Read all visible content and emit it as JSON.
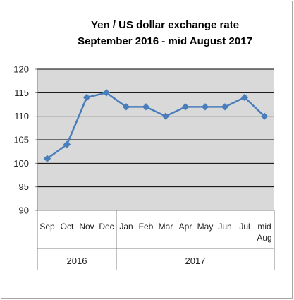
{
  "chart_data": {
    "type": "line",
    "title": "Yen / US dollar exchange rate",
    "subtitle": "September 2016 - mid August 2017",
    "xlabel": "",
    "ylabel": "",
    "categories": [
      [
        "Sep"
      ],
      [
        "Oct"
      ],
      [
        "Nov"
      ],
      [
        "Dec"
      ],
      [
        "Jan"
      ],
      [
        "Feb"
      ],
      [
        "Mar"
      ],
      [
        "Apr"
      ],
      [
        "May"
      ],
      [
        "Jun"
      ],
      [
        "Jul"
      ],
      [
        "mid",
        "Aug"
      ]
    ],
    "category_groups": [
      {
        "label": "2016",
        "count": 4
      },
      {
        "label": "2017",
        "count": 8
      }
    ],
    "series": [
      {
        "values": [
          101,
          104,
          114,
          115,
          112,
          112,
          110,
          112,
          112,
          112,
          114,
          110
        ]
      }
    ],
    "ylim": [
      90,
      120
    ],
    "yticks": [
      "90",
      "95",
      "100",
      "105",
      "110",
      "115",
      "120"
    ],
    "grid": true,
    "legend": "none",
    "colors": {
      "line": "#4a7ebb",
      "plot_background": "#d9d9d9",
      "frame_border": "#a6a6a6",
      "grid": "#000000"
    }
  }
}
